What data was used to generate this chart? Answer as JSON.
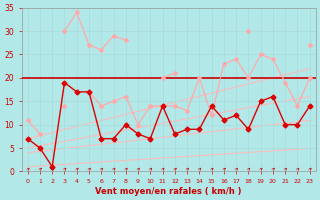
{
  "background_color": "#b2e8e8",
  "grid_color": "#aadddd",
  "xlabel": "Vent moyen/en rafales ( km/h )",
  "xlim": [
    -0.5,
    23.5
  ],
  "ylim": [
    0,
    35
  ],
  "yticks": [
    0,
    5,
    10,
    15,
    20,
    25,
    30,
    35
  ],
  "xticks": [
    0,
    1,
    2,
    3,
    4,
    5,
    6,
    7,
    8,
    9,
    10,
    11,
    12,
    13,
    14,
    15,
    16,
    17,
    18,
    19,
    20,
    21,
    22,
    23
  ],
  "x": [
    0,
    1,
    2,
    3,
    4,
    5,
    6,
    7,
    8,
    9,
    10,
    11,
    12,
    13,
    14,
    15,
    16,
    17,
    18,
    19,
    20,
    21,
    22,
    23
  ],
  "hline_y": 20,
  "hline_color": "#cc0000",
  "hline_lw": 1.2,
  "series": [
    {
      "name": "rafales_light_upper",
      "color": "#ffaaaa",
      "lw": 0.9,
      "marker": "D",
      "markersize": 2.0,
      "connect": true,
      "values": [
        11,
        8,
        null,
        30,
        34,
        27,
        26,
        29,
        28,
        null,
        null,
        20,
        21,
        null,
        null,
        null,
        null,
        null,
        30,
        null,
        null,
        null,
        null,
        27
      ]
    },
    {
      "name": "rafales_light_lower",
      "color": "#ffaaaa",
      "lw": 0.9,
      "marker": "D",
      "markersize": 2.0,
      "connect": true,
      "values": [
        null,
        null,
        null,
        14,
        null,
        17,
        14,
        15,
        16,
        10,
        14,
        14,
        14,
        13,
        20,
        12,
        23,
        24,
        20,
        25,
        24,
        19,
        14,
        20
      ]
    },
    {
      "name": "vent_moyen_dark",
      "color": "#dd0000",
      "lw": 1.0,
      "marker": "D",
      "markersize": 2.5,
      "connect": true,
      "values": [
        7,
        5,
        1,
        19,
        17,
        17,
        7,
        7,
        10,
        8,
        7,
        14,
        8,
        9,
        9,
        14,
        11,
        12,
        9,
        15,
        16,
        10,
        10,
        14
      ]
    },
    {
      "name": "trend_line1",
      "color": "#ffbbbb",
      "lw": 0.8,
      "marker": null,
      "values": [
        7.0,
        7.65,
        8.3,
        8.95,
        9.6,
        10.25,
        10.9,
        11.55,
        12.2,
        12.85,
        13.5,
        14.15,
        14.8,
        15.45,
        16.1,
        16.75,
        17.4,
        18.05,
        18.7,
        19.35,
        20.0,
        20.65,
        21.3,
        21.95
      ]
    },
    {
      "name": "trend_line2",
      "color": "#ffbbbb",
      "lw": 0.8,
      "marker": null,
      "values": [
        5.0,
        5.48,
        5.96,
        6.44,
        6.92,
        7.4,
        7.88,
        8.36,
        8.84,
        9.32,
        9.8,
        10.28,
        10.76,
        11.24,
        11.72,
        12.2,
        12.68,
        13.16,
        13.64,
        14.12,
        14.6,
        15.08,
        15.56,
        16.04
      ]
    },
    {
      "name": "trend_line3",
      "color": "#ffbbbb",
      "lw": 0.8,
      "marker": null,
      "values": [
        4.0,
        4.3,
        4.6,
        4.9,
        5.2,
        5.5,
        5.8,
        6.1,
        6.4,
        6.7,
        7.0,
        7.3,
        7.6,
        7.9,
        8.2,
        8.5,
        8.8,
        9.1,
        9.4,
        9.7,
        10.0,
        10.3,
        10.6,
        10.9
      ]
    },
    {
      "name": "trend_line4",
      "color": "#ffbbbb",
      "lw": 0.8,
      "marker": null,
      "values": [
        1.0,
        1.17,
        1.34,
        1.51,
        1.68,
        1.85,
        2.02,
        2.19,
        2.36,
        2.53,
        2.7,
        2.87,
        3.04,
        3.21,
        3.38,
        3.55,
        3.72,
        3.89,
        4.06,
        4.23,
        4.4,
        4.57,
        4.74,
        4.91
      ]
    }
  ],
  "arrow_color": "#cc0000",
  "xlabel_color": "#cc0000",
  "tick_color": "#cc0000",
  "xlabel_fontsize": 6.0,
  "ytick_fontsize": 5.5,
  "xtick_fontsize": 4.5
}
